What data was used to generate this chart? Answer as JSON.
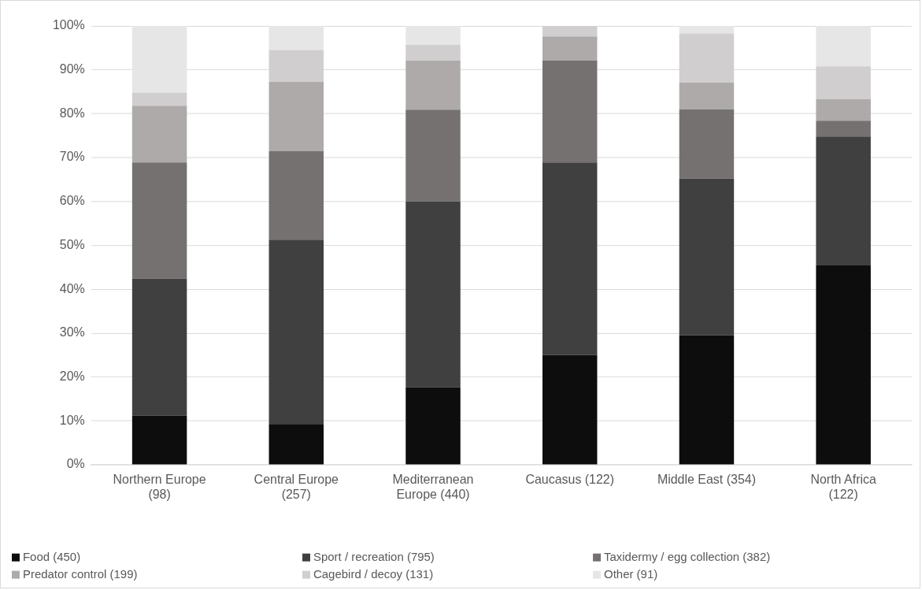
{
  "chart_data": {
    "type": "bar",
    "stacked": true,
    "categories": [
      "Northern Europe (98)",
      "Central Europe (257)",
      "Mediterranean Europe (440)",
      "Caucasus (122)",
      "Middle East (354)",
      "North Africa (122)"
    ],
    "ylim": [
      0,
      100
    ],
    "yticks": [
      {
        "value": 0,
        "label": "0%"
      },
      {
        "value": 10,
        "label": "10%"
      },
      {
        "value": 20,
        "label": "20%"
      },
      {
        "value": 30,
        "label": "30%"
      },
      {
        "value": 40,
        "label": "40%"
      },
      {
        "value": 50,
        "label": "50%"
      },
      {
        "value": 60,
        "label": "60%"
      },
      {
        "value": 70,
        "label": "70%"
      },
      {
        "value": 80,
        "label": "80%"
      },
      {
        "value": 90,
        "label": "90%"
      },
      {
        "value": 100,
        "label": "100%"
      }
    ],
    "grid": "y",
    "legend": "bottom",
    "series": [
      {
        "name": "Food (450)",
        "color": "#0d0d0d",
        "values": [
          11.2,
          9.3,
          17.7,
          25.0,
          29.5,
          45.4
        ]
      },
      {
        "name": "Sport / recreation (795)",
        "color": "#404040",
        "values": [
          31.2,
          42.0,
          42.3,
          43.9,
          35.7,
          29.4
        ]
      },
      {
        "name": "Taxidermy / egg collection (382)",
        "color": "#757171",
        "values": [
          26.5,
          20.2,
          20.9,
          23.2,
          15.8,
          3.6
        ]
      },
      {
        "name": "Predator control (199)",
        "color": "#aeaaaa",
        "values": [
          12.9,
          15.8,
          11.2,
          5.5,
          6.1,
          4.9
        ]
      },
      {
        "name": "Cagebird / decoy (131)",
        "color": "#d0cece",
        "values": [
          3.0,
          7.2,
          3.6,
          2.4,
          11.2,
          7.5
        ]
      },
      {
        "name": "Other (91)",
        "color": "#e7e6e6",
        "values": [
          15.2,
          5.5,
          4.3,
          0,
          1.7,
          9.2
        ]
      }
    ]
  }
}
